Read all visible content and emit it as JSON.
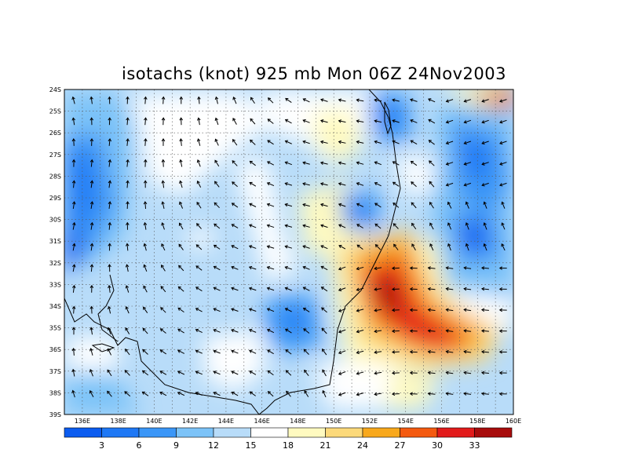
{
  "title": "isotachs (knot) 925 mb Mon 06Z 24Nov2003",
  "map": {
    "lon_range": [
      135,
      160
    ],
    "lat_range": [
      -39,
      -24
    ],
    "lon_labels": [
      "136E",
      "138E",
      "140E",
      "142E",
      "144E",
      "146E",
      "148E",
      "150E",
      "152E",
      "154E",
      "156E",
      "158E",
      "160E"
    ],
    "lat_labels": [
      "24S",
      "25S",
      "26S",
      "27S",
      "28S",
      "29S",
      "30S",
      "31S",
      "32S",
      "33S",
      "34S",
      "35S",
      "36S",
      "37S",
      "38S",
      "39S"
    ],
    "grid": "dotted"
  },
  "colorbar": {
    "levels": [
      "3",
      "6",
      "9",
      "12",
      "15",
      "18",
      "21",
      "24",
      "27",
      "30",
      "33"
    ],
    "colors": [
      "#0b5cf0",
      "#1e78f5",
      "#3a96f7",
      "#7cc3f8",
      "#b8dcf9",
      "#ffffff",
      "#fffac0",
      "#fcd97a",
      "#f8a81c",
      "#f45a10",
      "#e21b1b",
      "#a80c0c"
    ]
  }
}
